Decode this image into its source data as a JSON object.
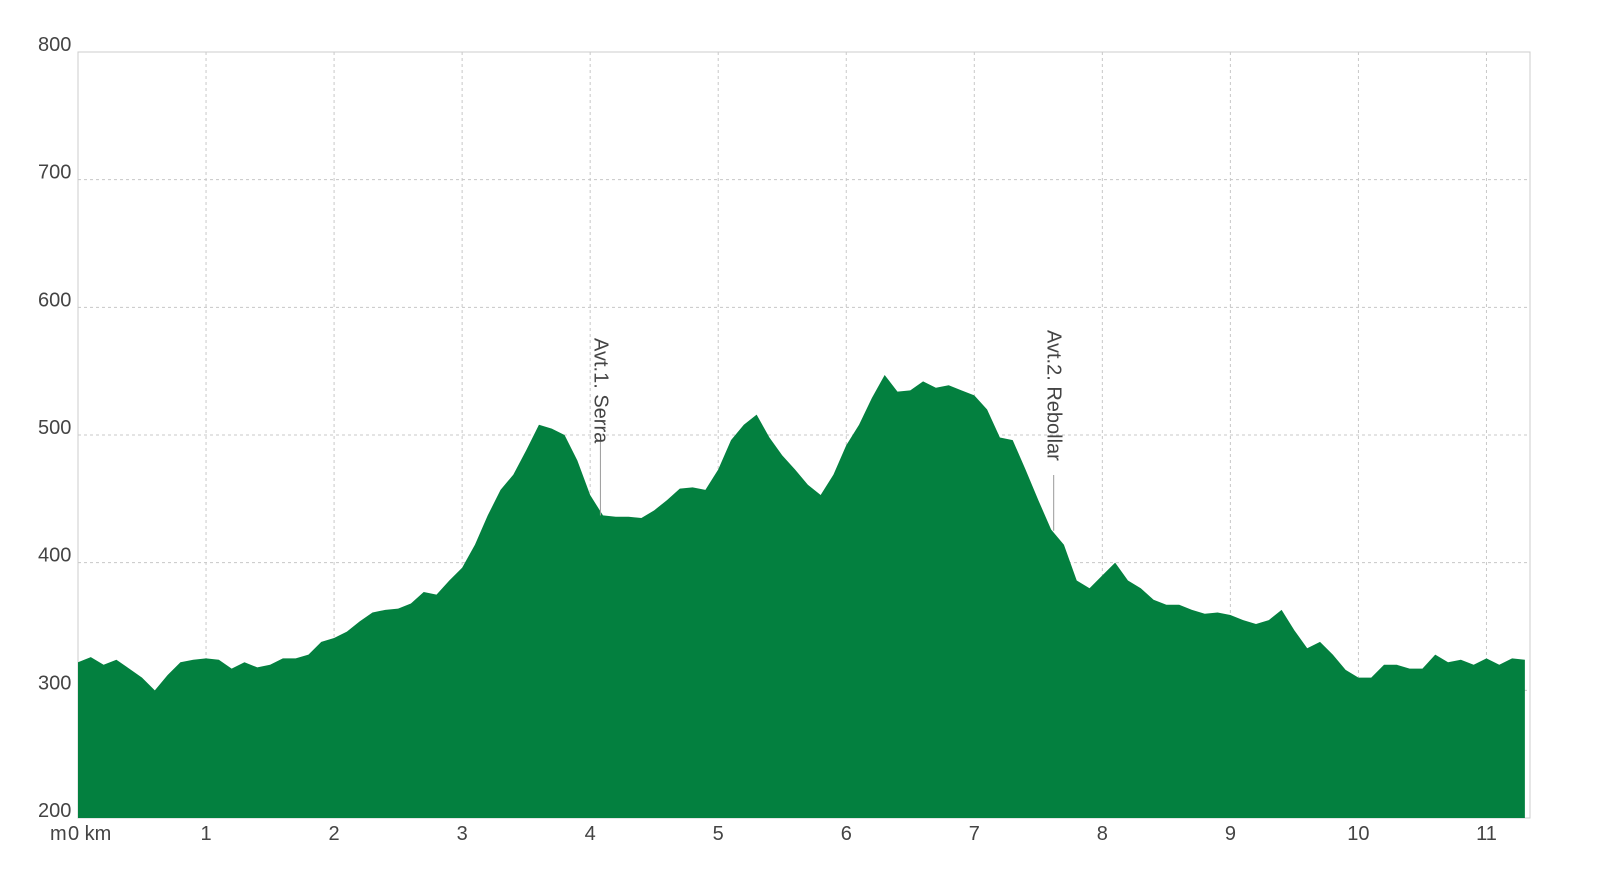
{
  "chart_data": {
    "type": "area",
    "color": "#03803f",
    "grid": true,
    "y_label": "m",
    "x": [
      0,
      0.1,
      0.2,
      0.3,
      0.4,
      0.5,
      0.6,
      0.7,
      0.8,
      0.9,
      1,
      1.1,
      1.2,
      1.3,
      1.4,
      1.5,
      1.6,
      1.7,
      1.8,
      1.9,
      2,
      2.1,
      2.2,
      2.3,
      2.4,
      2.5,
      2.6,
      2.7,
      2.8,
      2.9,
      3,
      3.1,
      3.2,
      3.3,
      3.4,
      3.5,
      3.6,
      3.7,
      3.8,
      3.9,
      4,
      4.1,
      4.2,
      4.3,
      4.4,
      4.5,
      4.6,
      4.7,
      4.8,
      4.9,
      5,
      5.1,
      5.2,
      5.3,
      5.4,
      5.5,
      5.6,
      5.7,
      5.8,
      5.9,
      6,
      6.1,
      6.2,
      6.3,
      6.4,
      6.5,
      6.6,
      6.7,
      6.8,
      6.9,
      7,
      7.1,
      7.2,
      7.3,
      7.4,
      7.5,
      7.6,
      7.7,
      7.8,
      7.9,
      8,
      8.1,
      8.2,
      8.3,
      8.4,
      8.5,
      8.6,
      8.7,
      8.8,
      8.9,
      9,
      9.1,
      9.2,
      9.3,
      9.4,
      9.5,
      9.6,
      9.7,
      9.8,
      9.9,
      10,
      10.1,
      10.2,
      10.3,
      10.4,
      10.5,
      10.6,
      10.7,
      10.8,
      10.9,
      11,
      11.1,
      11.2,
      11.3
    ],
    "values": [
      322,
      326,
      320,
      324,
      317,
      310,
      300,
      312,
      322,
      324,
      325,
      324,
      317,
      322,
      318,
      320,
      325,
      325,
      328,
      338,
      341,
      346,
      354,
      361,
      363,
      364,
      368,
      377,
      375,
      386,
      396,
      414,
      437,
      457,
      469,
      488,
      508,
      505,
      500,
      480,
      453,
      437,
      436,
      436,
      435,
      441,
      449,
      458,
      459,
      457,
      473,
      496,
      508,
      516,
      498,
      484,
      473,
      461,
      453,
      469,
      492,
      508,
      529,
      547,
      534,
      535,
      542,
      537,
      539,
      535,
      531,
      520,
      498,
      496,
      473,
      449,
      426,
      414,
      386,
      380,
      390,
      400,
      386,
      380,
      371,
      367,
      367,
      363,
      360,
      361,
      359,
      355,
      352,
      355,
      363,
      347,
      333,
      338,
      328,
      316,
      310,
      310,
      320,
      320,
      317,
      317,
      328,
      322,
      324,
      320,
      325,
      320,
      325,
      324
    ],
    "xlim": [
      0,
      11.34
    ],
    "ylim": [
      200,
      800
    ],
    "xticks": [
      {
        "value": 0,
        "label": "0 km"
      },
      1,
      2,
      3,
      4,
      5,
      6,
      7,
      8,
      9,
      10,
      11
    ],
    "yticks": [
      200,
      300,
      400,
      500,
      600,
      700,
      800
    ],
    "annotations": [
      {
        "text": "Avt.1. Serra",
        "x": 4.08,
        "y": 437
      },
      {
        "text": "Avt.2. Rebollar",
        "x": 7.62,
        "y": 425
      }
    ]
  }
}
